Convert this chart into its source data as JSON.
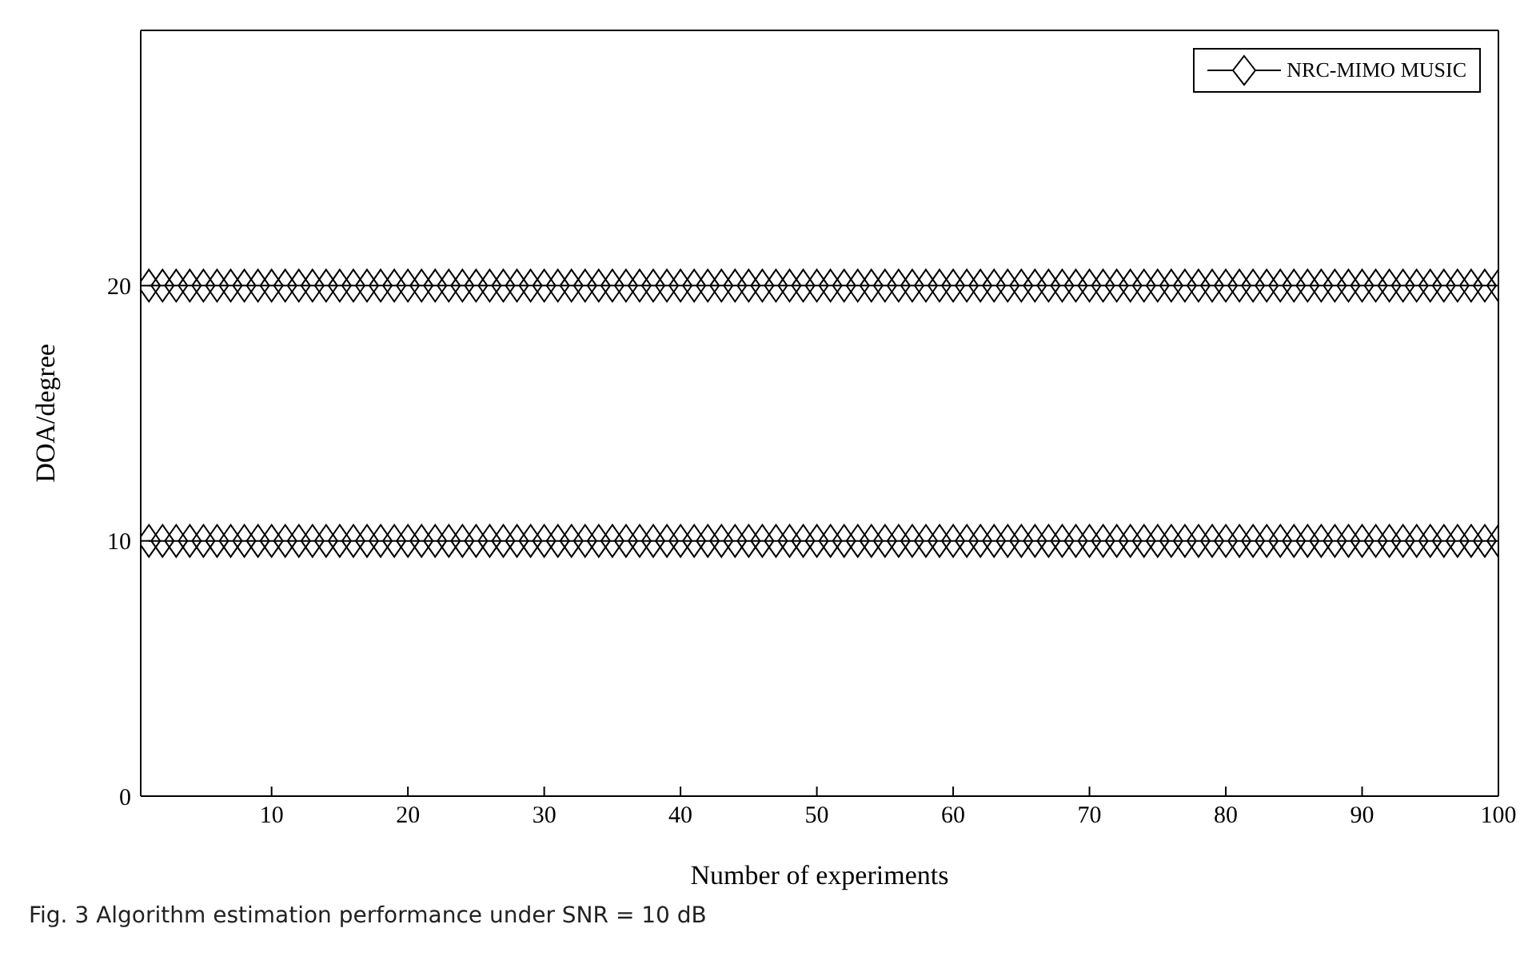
{
  "chart_data": {
    "type": "line",
    "xlabel": "Number of experiments",
    "ylabel": "DOA/degree",
    "annotations": [
      "Fig. 3  Algorithm estimation performance under SNR = 10 dB"
    ],
    "x": [
      1,
      2,
      3,
      4,
      5,
      6,
      7,
      8,
      9,
      10,
      11,
      12,
      13,
      14,
      15,
      16,
      17,
      18,
      19,
      20,
      21,
      22,
      23,
      24,
      25,
      26,
      27,
      28,
      29,
      30,
      31,
      32,
      33,
      34,
      35,
      36,
      37,
      38,
      39,
      40,
      41,
      42,
      43,
      44,
      45,
      46,
      47,
      48,
      49,
      50,
      51,
      52,
      53,
      54,
      55,
      56,
      57,
      58,
      59,
      60,
      61,
      62,
      63,
      64,
      65,
      66,
      67,
      68,
      69,
      70,
      71,
      72,
      73,
      74,
      75,
      76,
      77,
      78,
      79,
      80,
      81,
      82,
      83,
      84,
      85,
      86,
      87,
      88,
      89,
      90,
      91,
      92,
      93,
      94,
      95,
      96,
      97,
      98,
      99,
      100
    ],
    "series": [
      {
        "name": "NRC-MIMO MUSIC",
        "color": "#000000",
        "values": [
          20,
          20,
          20,
          20,
          20,
          20,
          20,
          20,
          20,
          20,
          20,
          20,
          20,
          20,
          20,
          20,
          20,
          20,
          20,
          20,
          20,
          20,
          20,
          20,
          20,
          20,
          20,
          20,
          20,
          20,
          20,
          20,
          20,
          20,
          20,
          20,
          20,
          20,
          20,
          20,
          20,
          20,
          20,
          20,
          20,
          20,
          20,
          20,
          20,
          20,
          20,
          20,
          20,
          20,
          20,
          20,
          20,
          20,
          20,
          20,
          20,
          20,
          20,
          20,
          20,
          20,
          20,
          20,
          20,
          20,
          20,
          20,
          20,
          20,
          20,
          20,
          20,
          20,
          20,
          20,
          20,
          20,
          20,
          20,
          20,
          20,
          20,
          20,
          20,
          20,
          20,
          20,
          20,
          20,
          20,
          20,
          20,
          20,
          20,
          20
        ]
      },
      {
        "color": "#000000",
        "values": [
          10,
          10,
          10,
          10,
          10,
          10,
          10,
          10,
          10,
          10,
          10,
          10,
          10,
          10,
          10,
          10,
          10,
          10,
          10,
          10,
          10,
          10,
          10,
          10,
          10,
          10,
          10,
          10,
          10,
          10,
          10,
          10,
          10,
          10,
          10,
          10,
          10,
          10,
          10,
          10,
          10,
          10,
          10,
          10,
          10,
          10,
          10,
          10,
          10,
          10,
          10,
          10,
          10,
          10,
          10,
          10,
          10,
          10,
          10,
          10,
          10,
          10,
          10,
          10,
          10,
          10,
          10,
          10,
          10,
          10,
          10,
          10,
          10,
          10,
          10,
          10,
          10,
          10,
          10,
          10,
          10,
          10,
          10,
          10,
          10,
          10,
          10,
          10,
          10,
          10,
          10,
          10,
          10,
          10,
          10,
          10,
          10,
          10,
          10,
          10
        ]
      }
    ],
    "xlim": [
      0.4,
      100
    ],
    "xticks": [
      10,
      20,
      30,
      40,
      50,
      60,
      70,
      80,
      90,
      100
    ],
    "ylim": [
      0,
      30
    ],
    "yticks": [
      0,
      10,
      20,
      {
        "value": 30,
        "label": null
      }
    ],
    "grid": false,
    "legend": "top right",
    "marker": "diamond",
    "line_style": "solid"
  }
}
